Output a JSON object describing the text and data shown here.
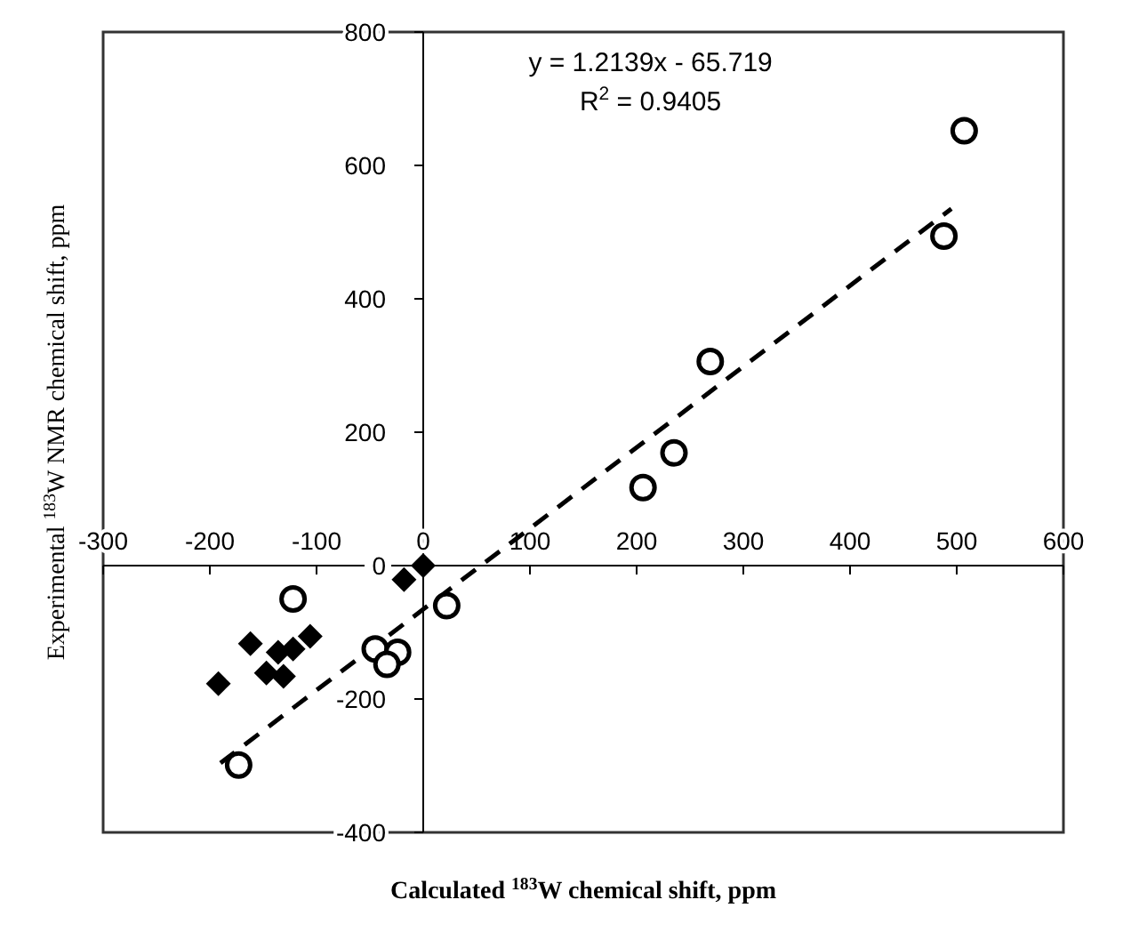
{
  "chart_data": {
    "type": "scatter",
    "xlabel": "Calculated $^{183}$W chemical shift, ppm",
    "ylabel": "Experimental $^{183}$W NMR chemical shift, ppm",
    "annotations": [
      "y = 1.2139x - 65.719",
      "R$^{2}$ = 0.9405"
    ],
    "xlim": [
      -300,
      600
    ],
    "xticks": [
      -300,
      -200,
      -100,
      0,
      100,
      200,
      300,
      400,
      500,
      600
    ],
    "ylim": [
      -400,
      800
    ],
    "yticks": [
      -400,
      -200,
      0,
      200,
      400,
      600,
      800
    ],
    "series": [
      {
        "marker": "circle",
        "color": "#000000",
        "x": [
          -173,
          -122,
          22,
          -45,
          -24,
          -34,
          206,
          235,
          269,
          488,
          507
        ],
        "values": [
          -299,
          -50,
          -60,
          -125,
          -130,
          -148,
          117,
          169,
          306,
          494,
          652
        ]
      },
      {
        "marker": "diamond",
        "color": "#000000",
        "x": [
          0,
          -18,
          -106,
          -122,
          -136,
          -162,
          -147,
          -131,
          -192
        ],
        "values": [
          0,
          -21,
          -106,
          -125,
          -130,
          -117,
          -161,
          -166,
          -177
        ]
      },
      {
        "type": "line",
        "marker": "none",
        "line_style": "dashed",
        "color": "#000000",
        "x": [
          -190,
          495
        ],
        "values": [
          -296,
          535
        ]
      }
    ]
  }
}
